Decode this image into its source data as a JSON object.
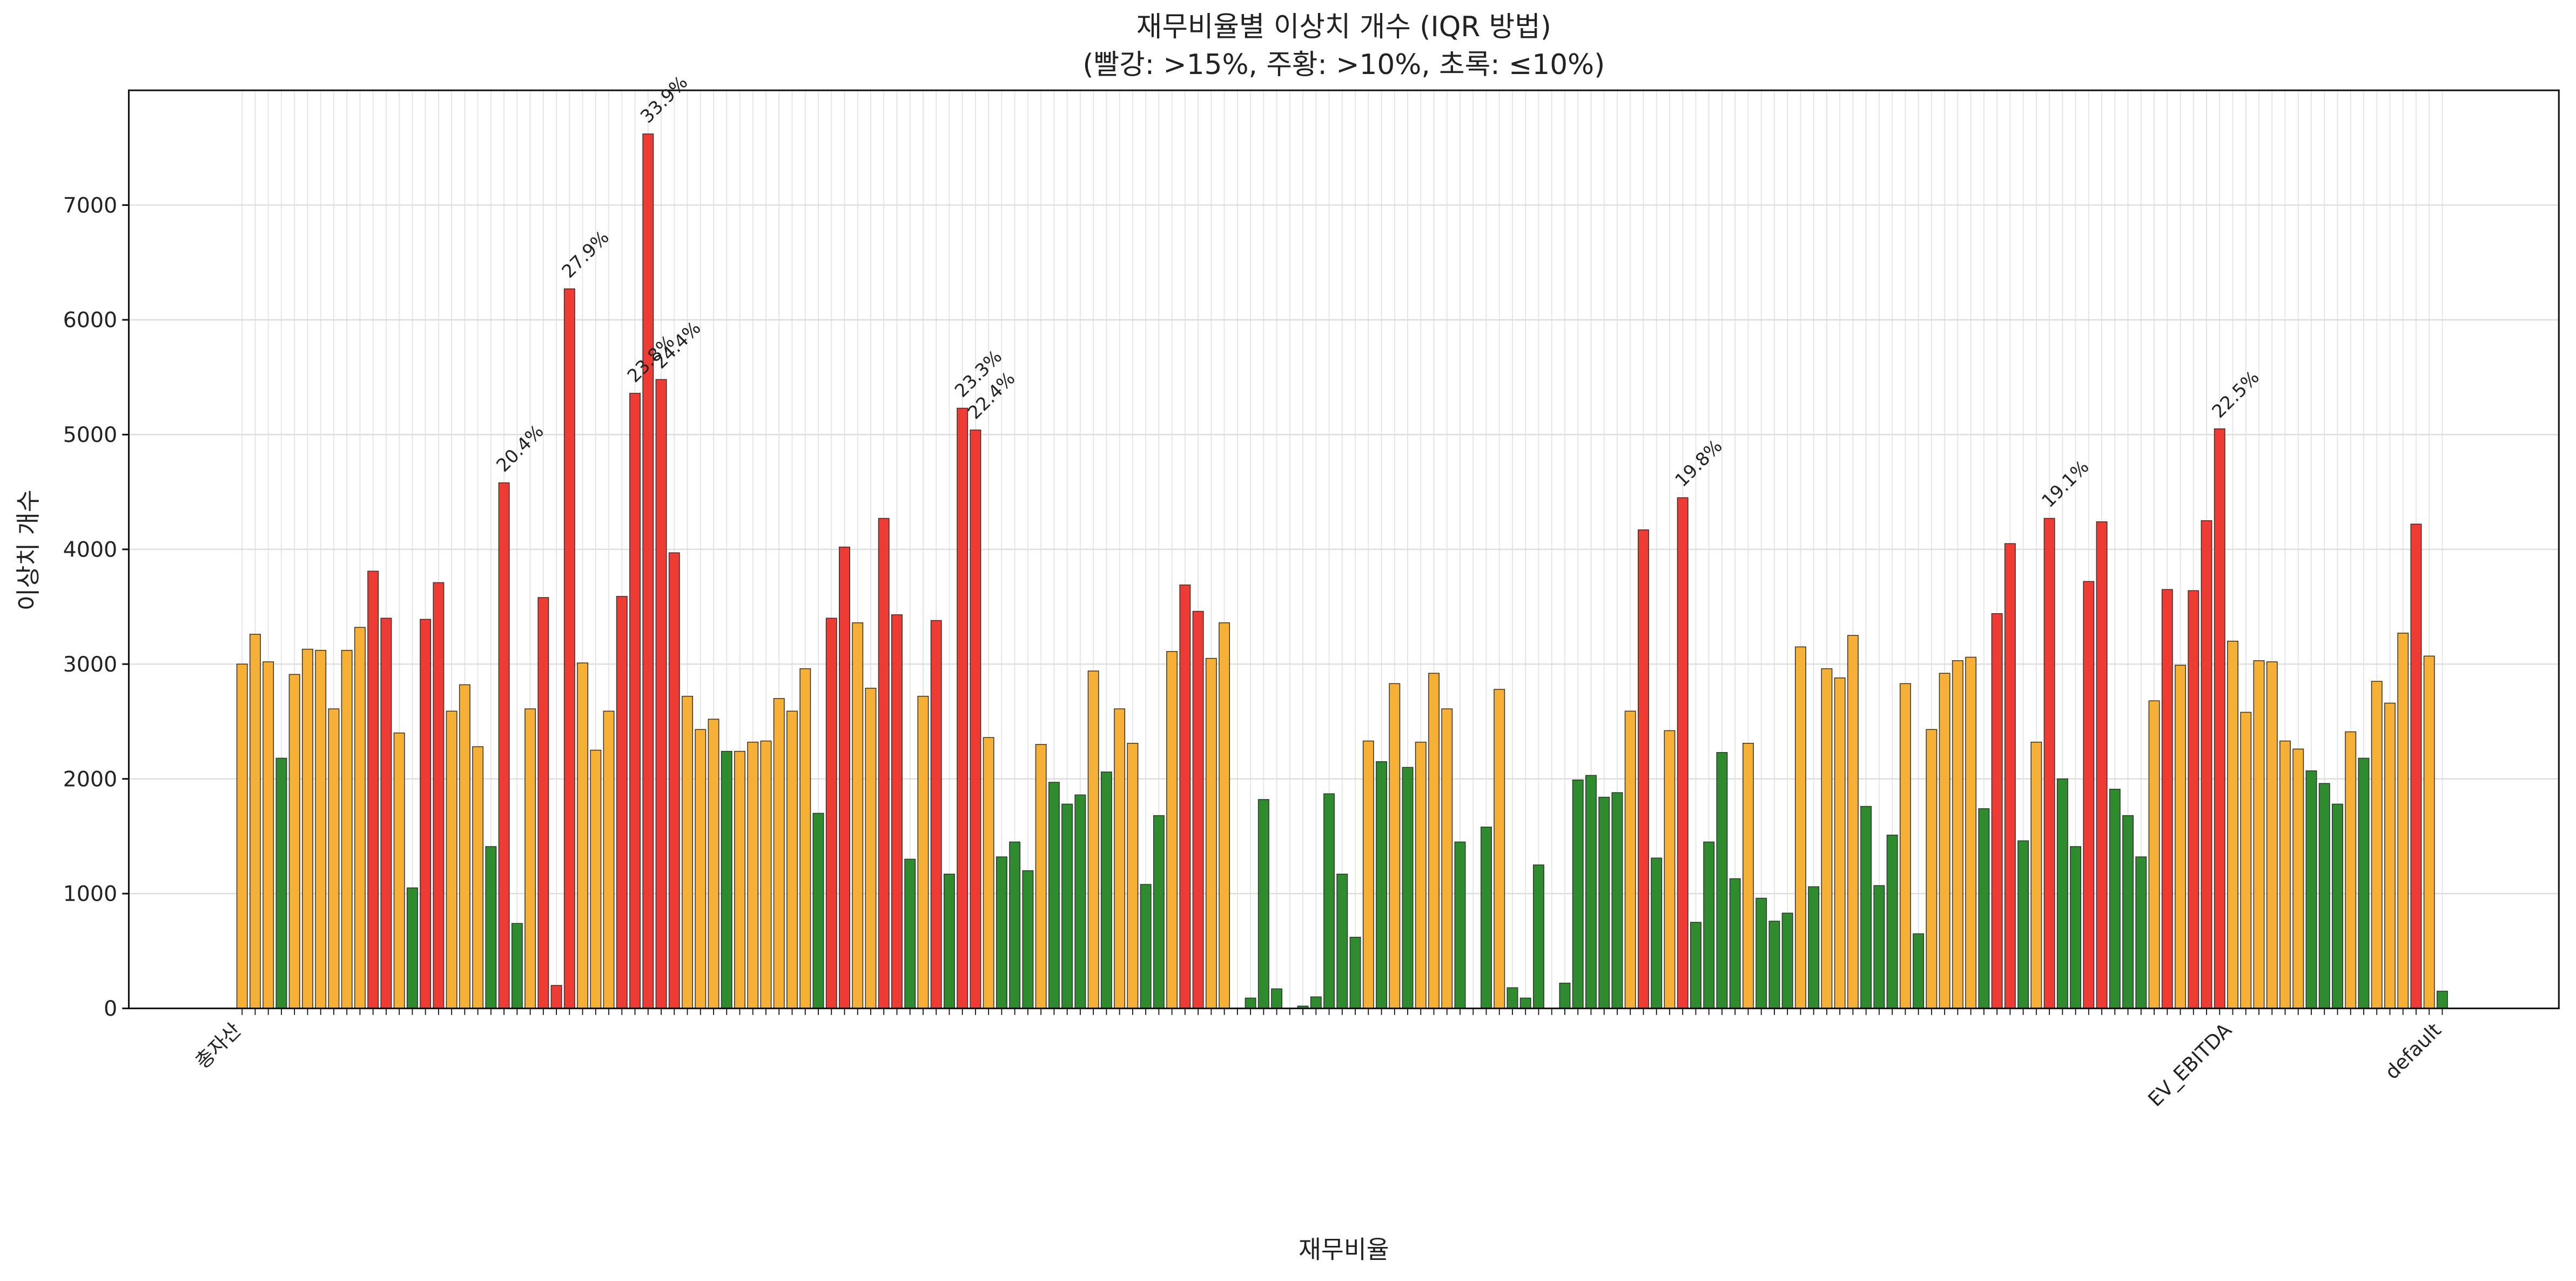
{
  "chart_data": {
    "type": "bar",
    "title": "재무비율별 이상치 개수 (IQR 방법)",
    "subtitle": "(빨강: >15%, 주황: >10%, 초록: ≤10%)",
    "x_label": "재무비율",
    "y_label": "이상치 개수",
    "categories": [
      "총자산",
      null,
      null,
      null,
      null,
      null,
      null,
      null,
      null,
      null,
      null,
      null,
      null,
      null,
      null,
      null,
      null,
      null,
      null,
      null,
      null,
      null,
      null,
      null,
      null,
      null,
      null,
      null,
      null,
      null,
      null,
      null,
      null,
      null,
      null,
      null,
      null,
      null,
      null,
      null,
      null,
      null,
      null,
      null,
      null,
      null,
      null,
      null,
      null,
      null,
      null,
      null,
      null,
      null,
      null,
      null,
      null,
      null,
      null,
      null,
      null,
      null,
      null,
      null,
      null,
      null,
      null,
      null,
      null,
      null,
      null,
      null,
      null,
      null,
      null,
      null,
      null,
      null,
      null,
      null,
      null,
      null,
      null,
      null,
      null,
      null,
      null,
      null,
      null,
      null,
      null,
      null,
      null,
      null,
      null,
      null,
      null,
      null,
      null,
      null,
      null,
      null,
      null,
      null,
      null,
      null,
      null,
      null,
      null,
      null,
      null,
      null,
      null,
      null,
      null,
      null,
      null,
      null,
      null,
      null,
      null,
      null,
      null,
      null,
      null,
      null,
      null,
      null,
      null,
      null,
      null,
      null,
      null,
      null,
      null,
      null,
      null,
      null,
      null,
      null,
      null,
      null,
      null,
      null,
      null,
      null,
      null,
      null,
      null,
      null,
      null,
      null,
      "EV_EBITDA",
      null,
      null,
      null,
      null,
      null,
      null,
      null,
      null,
      null,
      null,
      null,
      null,
      null,
      null,
      null,
      "default"
    ],
    "values": [
      3000,
      3260,
      3020,
      2180,
      2910,
      3130,
      3120,
      2610,
      3120,
      3320,
      3810,
      3400,
      2400,
      1050,
      3390,
      3710,
      2590,
      2820,
      2280,
      1410,
      4580,
      740,
      2610,
      3580,
      200,
      6270,
      3010,
      2250,
      2590,
      3590,
      5360,
      7620,
      5480,
      3970,
      2720,
      2430,
      2520,
      2240,
      2240,
      2320,
      2330,
      2700,
      2590,
      2960,
      1700,
      3400,
      4020,
      3360,
      2790,
      4270,
      3430,
      1300,
      2720,
      3380,
      1170,
      5230,
      5040,
      2360,
      1320,
      1450,
      1200,
      2300,
      1970,
      1780,
      1860,
      2940,
      2060,
      2610,
      2310,
      1080,
      1680,
      3110,
      3690,
      3460,
      3050,
      3360,
      0,
      90,
      1820,
      170,
      0,
      20,
      100,
      1870,
      1170,
      620,
      2330,
      2150,
      2830,
      2100,
      2320,
      2920,
      2610,
      1450,
      0,
      1580,
      2780,
      180,
      90,
      1250,
      0,
      220,
      1990,
      2030,
      1840,
      1880,
      2590,
      4170,
      1310,
      2420,
      4450,
      750,
      1450,
      2230,
      1130,
      2310,
      960,
      760,
      830,
      3150,
      1060,
      2960,
      2880,
      3250,
      1760,
      1070,
      1510,
      2830,
      650,
      2430,
      2920,
      3030,
      3060,
      1740,
      3440,
      4050,
      1460,
      2320,
      4270,
      2000,
      1410,
      3720,
      4240,
      1910,
      1680,
      1320,
      2680,
      3650,
      2990,
      3640,
      4250,
      5050,
      3200,
      2580,
      3030,
      3020,
      2330,
      2260,
      2070,
      1960,
      1780,
      2410,
      2180,
      2850,
      2660,
      3270,
      4220,
      3070,
      150
    ],
    "colors": [
      "#f5b035",
      "#f5b035",
      "#f5b035",
      "#2e8b2e",
      "#f5b035",
      "#f5b035",
      "#f5b035",
      "#f5b035",
      "#f5b035",
      "#f5b035",
      "#ee3b33",
      "#ee3b33",
      "#f5b035",
      "#2e8b2e",
      "#ee3b33",
      "#ee3b33",
      "#f5b035",
      "#f5b035",
      "#f5b035",
      "#2e8b2e",
      "#ee3b33",
      "#2e8b2e",
      "#f5b035",
      "#ee3b33",
      "#ee3b33",
      "#ee3b33",
      "#f5b035",
      "#f5b035",
      "#f5b035",
      "#ee3b33",
      "#ee3b33",
      "#ee3b33",
      "#ee3b33",
      "#ee3b33",
      "#f5b035",
      "#f5b035",
      "#f5b035",
      "#2e8b2e",
      "#f5b035",
      "#f5b035",
      "#f5b035",
      "#f5b035",
      "#f5b035",
      "#f5b035",
      "#2e8b2e",
      "#ee3b33",
      "#ee3b33",
      "#f5b035",
      "#f5b035",
      "#ee3b33",
      "#ee3b33",
      "#2e8b2e",
      "#f5b035",
      "#ee3b33",
      "#2e8b2e",
      "#ee3b33",
      "#ee3b33",
      "#f5b035",
      "#2e8b2e",
      "#2e8b2e",
      "#2e8b2e",
      "#f5b035",
      "#2e8b2e",
      "#2e8b2e",
      "#2e8b2e",
      "#f5b035",
      "#2e8b2e",
      "#f5b035",
      "#f5b035",
      "#2e8b2e",
      "#2e8b2e",
      "#f5b035",
      "#ee3b33",
      "#ee3b33",
      "#f5b035",
      "#f5b035",
      "#2e8b2e",
      "#2e8b2e",
      "#2e8b2e",
      "#2e8b2e",
      "#2e8b2e",
      "#2e8b2e",
      "#2e8b2e",
      "#2e8b2e",
      "#2e8b2e",
      "#2e8b2e",
      "#f5b035",
      "#2e8b2e",
      "#f5b035",
      "#2e8b2e",
      "#f5b035",
      "#f5b035",
      "#f5b035",
      "#2e8b2e",
      "#2e8b2e",
      "#2e8b2e",
      "#f5b035",
      "#2e8b2e",
      "#2e8b2e",
      "#2e8b2e",
      "#2e8b2e",
      "#2e8b2e",
      "#2e8b2e",
      "#2e8b2e",
      "#2e8b2e",
      "#2e8b2e",
      "#f5b035",
      "#ee3b33",
      "#2e8b2e",
      "#f5b035",
      "#ee3b33",
      "#2e8b2e",
      "#2e8b2e",
      "#2e8b2e",
      "#2e8b2e",
      "#f5b035",
      "#2e8b2e",
      "#2e8b2e",
      "#2e8b2e",
      "#f5b035",
      "#2e8b2e",
      "#f5b035",
      "#f5b035",
      "#f5b035",
      "#2e8b2e",
      "#2e8b2e",
      "#2e8b2e",
      "#f5b035",
      "#2e8b2e",
      "#f5b035",
      "#f5b035",
      "#f5b035",
      "#f5b035",
      "#2e8b2e",
      "#ee3b33",
      "#ee3b33",
      "#2e8b2e",
      "#f5b035",
      "#ee3b33",
      "#2e8b2e",
      "#2e8b2e",
      "#ee3b33",
      "#ee3b33",
      "#2e8b2e",
      "#2e8b2e",
      "#2e8b2e",
      "#f5b035",
      "#ee3b33",
      "#f5b035",
      "#ee3b33",
      "#ee3b33",
      "#ee3b33",
      "#f5b035",
      "#f5b035",
      "#f5b035",
      "#f5b035",
      "#f5b035",
      "#f5b035",
      "#2e8b2e",
      "#2e8b2e",
      "#2e8b2e",
      "#f5b035",
      "#2e8b2e",
      "#f5b035",
      "#f5b035",
      "#f5b035",
      "#ee3b33",
      "#f5b035",
      "#2e8b2e"
    ],
    "annotations": [
      null,
      null,
      null,
      null,
      null,
      null,
      null,
      null,
      null,
      null,
      null,
      null,
      null,
      null,
      null,
      null,
      null,
      null,
      null,
      null,
      "20.4%",
      null,
      null,
      null,
      null,
      "27.9%",
      null,
      null,
      null,
      null,
      "23.8%",
      "33.9%",
      "24.4%",
      null,
      null,
      null,
      null,
      null,
      null,
      null,
      null,
      null,
      null,
      null,
      null,
      null,
      null,
      null,
      null,
      null,
      null,
      null,
      null,
      null,
      null,
      "23.3%",
      "22.4%",
      null,
      null,
      null,
      null,
      null,
      null,
      null,
      null,
      null,
      null,
      null,
      null,
      null,
      null,
      null,
      null,
      null,
      null,
      null,
      null,
      null,
      null,
      null,
      null,
      null,
      null,
      null,
      null,
      null,
      null,
      null,
      null,
      null,
      null,
      null,
      null,
      null,
      null,
      null,
      null,
      null,
      null,
      null,
      null,
      null,
      null,
      null,
      null,
      null,
      null,
      null,
      null,
      null,
      "19.8%",
      null,
      null,
      null,
      null,
      null,
      null,
      null,
      null,
      null,
      null,
      null,
      null,
      null,
      null,
      null,
      null,
      null,
      null,
      null,
      null,
      null,
      null,
      null,
      null,
      null,
      null,
      null,
      "19.1%",
      null,
      null,
      null,
      null,
      null,
      null,
      null,
      null,
      null,
      null,
      null,
      null,
      "22.5%",
      null,
      null,
      null,
      null,
      null,
      null,
      null,
      null,
      null,
      null,
      null,
      null,
      null,
      null,
      null,
      null,
      null
    ],
    "ylim": [
      0,
      8000
    ],
    "yticks": [
      0,
      1000,
      2000,
      3000,
      4000,
      5000,
      6000,
      7000
    ],
    "grid": true
  }
}
